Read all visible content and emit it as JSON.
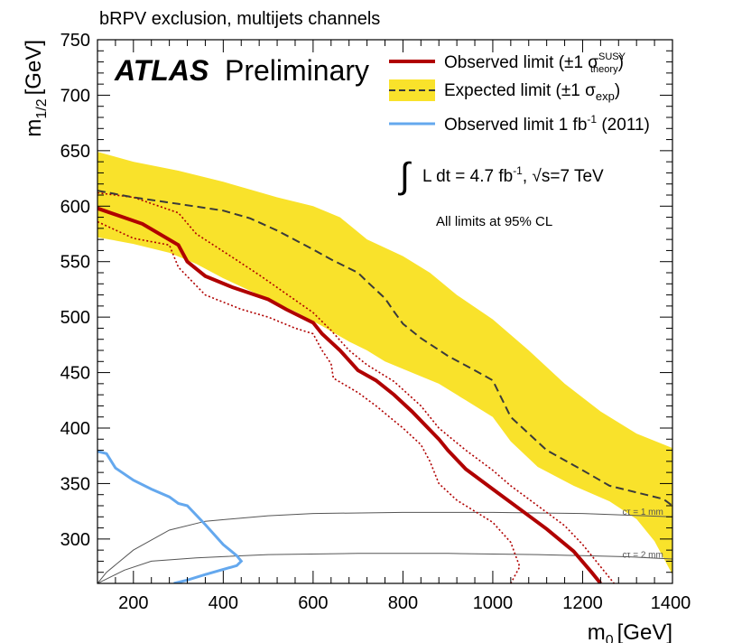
{
  "chart_data": {
    "type": "line",
    "title": "bRPV exclusion, multijets channels",
    "xlabel_main": "m",
    "xlabel_sub": "0",
    "xlabel_unit": "[GeV]",
    "ylabel_main": "m",
    "ylabel_sub": "1/2",
    "ylabel_unit": "[GeV]",
    "xlim": [
      120,
      1400
    ],
    "ylim": [
      260,
      750
    ],
    "x_ticks": [
      200,
      400,
      600,
      800,
      1000,
      1200,
      1400
    ],
    "y_ticks": [
      300,
      350,
      400,
      450,
      500,
      550,
      600,
      650,
      700,
      750
    ],
    "grid": false,
    "legend_position": "top-right",
    "atlas_label": "ATLAS",
    "preliminary_label": "Preliminary",
    "lumi": {
      "integral": "∫",
      "text": "L dt = 4.7 fb",
      "exp": "-1",
      "sqrt_s": ", √s=7 TeV"
    },
    "cl_note": "All limits at 95% CL",
    "legend": {
      "observed": {
        "text": "Observed limit (±1 σ",
        "sup": "SUSY",
        "sub": "theory",
        "close": ")"
      },
      "expected": {
        "text": "Expected limit (±1 σ",
        "sub": "exp",
        "close": ")"
      },
      "observed_2011": {
        "text": "Observed limit 1 fb",
        "sup": "-1",
        "tail": " (2011)"
      }
    },
    "contour_labels": [
      {
        "text": "cτ = 1 mm",
        "x": 1330,
        "y": 322
      },
      {
        "text": "cτ = 2 mm",
        "x": 1330,
        "y": 283
      }
    ],
    "colors": {
      "observed": "#b00000",
      "expected_band": "#f9e22b",
      "expected_line": "#3a3a3a",
      "observed_2011": "#64a8ee",
      "contour": "#555555"
    },
    "series": [
      {
        "name": "Observed limit",
        "role": "observed",
        "points": [
          [
            120,
            598
          ],
          [
            220,
            584
          ],
          [
            300,
            565
          ],
          [
            320,
            550
          ],
          [
            360,
            537
          ],
          [
            420,
            527
          ],
          [
            500,
            516
          ],
          [
            540,
            507
          ],
          [
            600,
            495
          ],
          [
            620,
            485
          ],
          [
            660,
            470
          ],
          [
            700,
            452
          ],
          [
            740,
            443
          ],
          [
            780,
            430
          ],
          [
            820,
            415
          ],
          [
            880,
            390
          ],
          [
            900,
            380
          ],
          [
            940,
            363
          ],
          [
            1000,
            345
          ],
          [
            1060,
            327
          ],
          [
            1120,
            309
          ],
          [
            1180,
            289
          ],
          [
            1220,
            270
          ],
          [
            1240,
            260
          ]
        ]
      },
      {
        "name": "Observed limit +1 sigma theory",
        "role": "observed_theory_up",
        "points": [
          [
            120,
            612
          ],
          [
            200,
            608
          ],
          [
            300,
            594
          ],
          [
            340,
            575
          ],
          [
            420,
            554
          ],
          [
            480,
            538
          ],
          [
            540,
            521
          ],
          [
            600,
            504
          ],
          [
            640,
            488
          ],
          [
            680,
            470
          ],
          [
            720,
            457
          ],
          [
            780,
            442
          ],
          [
            840,
            420
          ],
          [
            880,
            400
          ],
          [
            940,
            380
          ],
          [
            1000,
            362
          ],
          [
            1040,
            348
          ],
          [
            1100,
            330
          ],
          [
            1160,
            312
          ],
          [
            1200,
            295
          ],
          [
            1250,
            270
          ],
          [
            1270,
            260
          ]
        ]
      },
      {
        "name": "Observed limit -1 sigma theory",
        "role": "observed_theory_down",
        "points": [
          [
            120,
            586
          ],
          [
            200,
            571
          ],
          [
            280,
            565
          ],
          [
            300,
            545
          ],
          [
            360,
            520
          ],
          [
            440,
            507
          ],
          [
            500,
            500
          ],
          [
            560,
            490
          ],
          [
            600,
            485
          ],
          [
            620,
            470
          ],
          [
            640,
            458
          ],
          [
            645,
            445
          ],
          [
            700,
            432
          ],
          [
            740,
            420
          ],
          [
            800,
            400
          ],
          [
            840,
            385
          ],
          [
            860,
            370
          ],
          [
            880,
            350
          ],
          [
            920,
            335
          ],
          [
            1000,
            315
          ],
          [
            1040,
            297
          ],
          [
            1060,
            275
          ],
          [
            1040,
            260
          ]
        ]
      },
      {
        "name": "Expected limit",
        "role": "expected",
        "points": [
          [
            120,
            614
          ],
          [
            200,
            608
          ],
          [
            300,
            602
          ],
          [
            400,
            596
          ],
          [
            460,
            589
          ],
          [
            520,
            578
          ],
          [
            600,
            561
          ],
          [
            640,
            552
          ],
          [
            700,
            540
          ],
          [
            720,
            532
          ],
          [
            760,
            517
          ],
          [
            780,
            505
          ],
          [
            800,
            494
          ],
          [
            840,
            481
          ],
          [
            900,
            465
          ],
          [
            960,
            452
          ],
          [
            1000,
            443
          ],
          [
            1040,
            410
          ],
          [
            1120,
            380
          ],
          [
            1200,
            362
          ],
          [
            1260,
            348
          ],
          [
            1320,
            342
          ],
          [
            1380,
            336
          ],
          [
            1400,
            330
          ]
        ]
      },
      {
        "name": "Expected band upper",
        "role": "expected_band_upper",
        "points": [
          [
            120,
            649
          ],
          [
            200,
            640
          ],
          [
            300,
            632
          ],
          [
            400,
            622
          ],
          [
            460,
            615
          ],
          [
            520,
            608
          ],
          [
            600,
            600
          ],
          [
            660,
            590
          ],
          [
            720,
            570
          ],
          [
            800,
            555
          ],
          [
            860,
            540
          ],
          [
            920,
            520
          ],
          [
            1000,
            498
          ],
          [
            1080,
            470
          ],
          [
            1160,
            440
          ],
          [
            1240,
            415
          ],
          [
            1320,
            395
          ],
          [
            1400,
            382
          ]
        ]
      },
      {
        "name": "Expected band lower",
        "role": "expected_band_lower",
        "points": [
          [
            120,
            572
          ],
          [
            200,
            566
          ],
          [
            280,
            558
          ],
          [
            340,
            548
          ],
          [
            400,
            535
          ],
          [
            480,
            520
          ],
          [
            560,
            505
          ],
          [
            620,
            492
          ],
          [
            680,
            478
          ],
          [
            720,
            470
          ],
          [
            760,
            460
          ],
          [
            820,
            450
          ],
          [
            880,
            440
          ],
          [
            940,
            425
          ],
          [
            1000,
            410
          ],
          [
            1040,
            388
          ],
          [
            1100,
            365
          ],
          [
            1180,
            348
          ],
          [
            1260,
            334
          ],
          [
            1320,
            318
          ],
          [
            1360,
            298
          ],
          [
            1400,
            268
          ],
          [
            1400,
            260
          ]
        ]
      },
      {
        "name": "Observed limit 1 fb-1 (2011)",
        "role": "observed_2011",
        "points": [
          [
            120,
            379
          ],
          [
            140,
            377
          ],
          [
            160,
            364
          ],
          [
            200,
            353
          ],
          [
            240,
            345
          ],
          [
            280,
            338
          ],
          [
            300,
            332
          ],
          [
            320,
            330
          ],
          [
            360,
            313
          ],
          [
            400,
            295
          ],
          [
            430,
            285
          ],
          [
            440,
            280
          ],
          [
            430,
            276
          ],
          [
            360,
            268
          ],
          [
            320,
            263
          ],
          [
            290,
            260
          ]
        ]
      },
      {
        "name": "ctau 1 mm",
        "role": "contour",
        "points": [
          [
            120,
            260
          ],
          [
            140,
            270
          ],
          [
            200,
            290
          ],
          [
            280,
            308
          ],
          [
            360,
            316
          ],
          [
            500,
            321
          ],
          [
            600,
            323
          ],
          [
            800,
            324
          ],
          [
            1000,
            324
          ],
          [
            1200,
            323
          ],
          [
            1400,
            320
          ]
        ]
      },
      {
        "name": "ctau 2 mm",
        "role": "contour",
        "points": [
          [
            120,
            260
          ],
          [
            180,
            272
          ],
          [
            240,
            280
          ],
          [
            340,
            283
          ],
          [
            500,
            286
          ],
          [
            700,
            287
          ],
          [
            900,
            287
          ],
          [
            1100,
            286
          ],
          [
            1300,
            284
          ],
          [
            1400,
            282
          ]
        ]
      }
    ]
  }
}
